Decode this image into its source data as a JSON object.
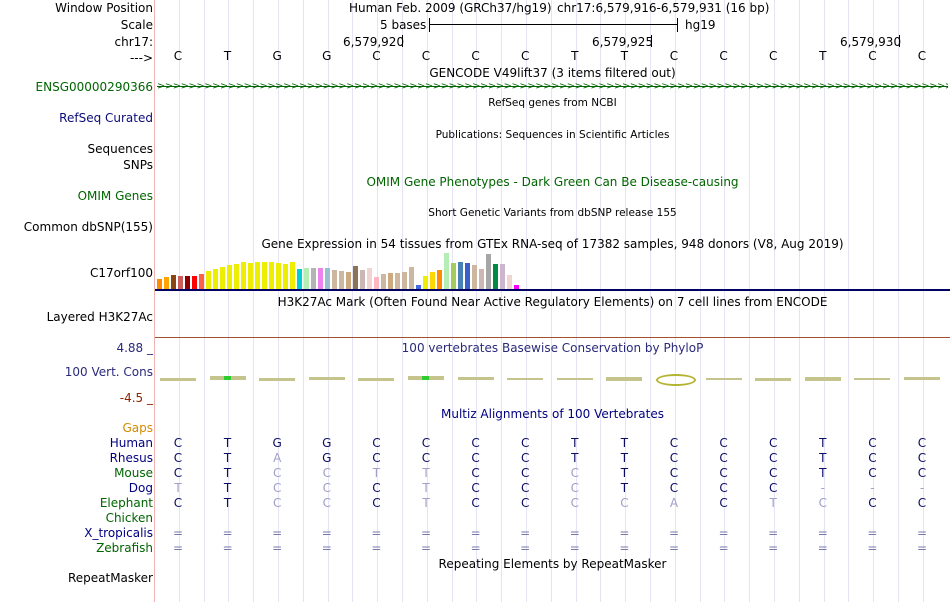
{
  "header": {
    "window_position_label": "Window Position",
    "assembly": "Human Feb. 2009 (GRCh37/hg19)",
    "position": "chr17:6,579,916-6,579,931 (16 bp)",
    "scale_label": "Scale",
    "scale_text": "5 bases",
    "scale_db": "hg19",
    "chrom_label": "chr17:",
    "coords": [
      "6,579,920",
      "6,579,925",
      "6,579,930"
    ],
    "arrow_label": "--->"
  },
  "bases": [
    "C",
    "T",
    "G",
    "G",
    "C",
    "C",
    "C",
    "C",
    "T",
    "T",
    "C",
    "C",
    "C",
    "T",
    "C",
    "C"
  ],
  "tracks": {
    "gencode": {
      "title": "GENCODE V49lift37 (3 items filtered out)",
      "label": "ENSG00000290366",
      "color": "#006400"
    },
    "refseq": {
      "title": "RefSeq genes from NCBI",
      "label": "RefSeq Curated",
      "color": "#0c0c78"
    },
    "publications": {
      "title": "Publications: Sequences in Scientific Articles",
      "label": "Sequences"
    },
    "snps": {
      "label": "SNPs"
    },
    "omim": {
      "title": "OMIM Gene Phenotypes - Dark Green Can Be Disease-causing",
      "label": "OMIM Genes",
      "color": "#006400"
    },
    "dbsnp": {
      "title": "Short Genetic Variants from dbSNP release 155",
      "label": "Common dbSNP(155)"
    },
    "gtex": {
      "title": "Gene Expression in 54 tissues from GTEx RNA-seq of 17382 samples, 948 donors (V8, Aug 2019)",
      "label": "C17orf100",
      "bars": [
        {
          "v": 0.28,
          "c": "#ff8c00"
        },
        {
          "v": 0.32,
          "c": "#ffa500"
        },
        {
          "v": 0.38,
          "c": "#8b4513"
        },
        {
          "v": 0.35,
          "c": "#cd5c5c"
        },
        {
          "v": 0.36,
          "c": "#8b0000"
        },
        {
          "v": 0.36,
          "c": "#ff0000"
        },
        {
          "v": 0.4,
          "c": "#ff6347"
        },
        {
          "v": 0.48,
          "c": "#eeee00"
        },
        {
          "v": 0.55,
          "c": "#eeee00"
        },
        {
          "v": 0.6,
          "c": "#eeee00"
        },
        {
          "v": 0.65,
          "c": "#eeee00"
        },
        {
          "v": 0.68,
          "c": "#eeee00"
        },
        {
          "v": 0.72,
          "c": "#eeee00"
        },
        {
          "v": 0.7,
          "c": "#eeee00"
        },
        {
          "v": 0.72,
          "c": "#eeee00"
        },
        {
          "v": 0.74,
          "c": "#eeee00"
        },
        {
          "v": 0.72,
          "c": "#eeee00"
        },
        {
          "v": 0.7,
          "c": "#eeee00"
        },
        {
          "v": 0.68,
          "c": "#eeee00"
        },
        {
          "v": 0.72,
          "c": "#eeee00"
        },
        {
          "v": 0.55,
          "c": "#00ced1"
        },
        {
          "v": 0.58,
          "c": "#b4eeb4"
        },
        {
          "v": 0.56,
          "c": "#b4b4b4"
        },
        {
          "v": 0.58,
          "c": "#ee82ee"
        },
        {
          "v": 0.56,
          "c": "#9ac0cd"
        },
        {
          "v": 0.52,
          "c": "#cdb79e"
        },
        {
          "v": 0.48,
          "c": "#cdb79e"
        },
        {
          "v": 0.46,
          "c": "#cdaa7d"
        },
        {
          "v": 0.62,
          "c": "#8b7355"
        },
        {
          "v": 0.5,
          "c": "#cdb7b5"
        },
        {
          "v": 0.56,
          "c": "#eed5d2"
        },
        {
          "v": 0.32,
          "c": "#ffb6c1"
        },
        {
          "v": 0.4,
          "c": "#cdb79e"
        },
        {
          "v": 0.42,
          "c": "#cdaa7d"
        },
        {
          "v": 0.42,
          "c": "#cdb79e"
        },
        {
          "v": 0.45,
          "c": "#cdb79e"
        },
        {
          "v": 0.6,
          "c": "#cdb79e"
        },
        {
          "v": 0.1,
          "c": "#4169e1"
        },
        {
          "v": 0.35,
          "c": "#eeee00"
        },
        {
          "v": 0.45,
          "c": "#ffd700"
        },
        {
          "v": 0.5,
          "c": "#ff8c00"
        },
        {
          "v": 0.98,
          "c": "#b4eeb4"
        },
        {
          "v": 0.7,
          "c": "#a2cd5a"
        },
        {
          "v": 0.72,
          "c": "#4682b4"
        },
        {
          "v": 0.7,
          "c": "#3a5fcd"
        },
        {
          "v": 0.66,
          "c": "#cdb79e"
        },
        {
          "v": 0.55,
          "c": "#cdb7b5"
        },
        {
          "v": 0.94,
          "c": "#a6a6a6"
        },
        {
          "v": 0.68,
          "c": "#008b45"
        },
        {
          "v": 0.68,
          "c": "#cdb5cd"
        },
        {
          "v": 0.38,
          "c": "#eed5d2"
        },
        {
          "v": 0.12,
          "c": "#ff00ff"
        }
      ]
    },
    "h3k27ac": {
      "title": "H3K27Ac Mark (Often Found Near Active Regulatory Elements) on 7 cell lines from ENCODE",
      "label": "Layered H3K27Ac"
    },
    "phylop": {
      "title": "100 vertebrates Basewise Conservation by PhyloP",
      "label": "100 Vert. Cons",
      "max": "4.88 _",
      "min": "-4.5 _",
      "values": [
        0.1,
        0.4,
        0.1,
        0.15,
        0.1,
        0.4,
        0.15,
        0,
        0,
        0.3,
        1.0,
        0,
        0.1,
        0.3,
        0,
        0.2
      ],
      "color": "#2a2a7a",
      "min_color": "#8b2500"
    },
    "multiz": {
      "title": "Multiz Alignments of 100 Vertebrates",
      "gaps_label": "Gaps",
      "gaps_color": "#d28c00",
      "species": [
        {
          "name": "Human",
          "color": "#000080",
          "bases": [
            "C",
            "T",
            "G",
            "G",
            "C",
            "C",
            "C",
            "C",
            "T",
            "T",
            "C",
            "C",
            "C",
            "T",
            "C",
            "C"
          ]
        },
        {
          "name": "Rhesus",
          "color": "#000080",
          "bases": [
            "C",
            "T",
            "A",
            "G",
            "C",
            "C",
            "C",
            "C",
            "T",
            "T",
            "C",
            "C",
            "C",
            "T",
            "C",
            "C"
          ]
        },
        {
          "name": "Mouse",
          "color": "#006400",
          "bases": [
            "C",
            "T",
            "C",
            "C",
            "T",
            "T",
            "C",
            "C",
            "C",
            "T",
            "C",
            "C",
            "C",
            "T",
            "C",
            "C"
          ]
        },
        {
          "name": "Dog",
          "color": "#000080",
          "bases": [
            "T",
            "T",
            "C",
            "C",
            "C",
            "T",
            "C",
            "C",
            "C",
            "T",
            "C",
            "C",
            "C",
            "-",
            "-",
            "-"
          ]
        },
        {
          "name": "Elephant",
          "color": "#006400",
          "bases": [
            "C",
            "T",
            "C",
            "C",
            "C",
            "T",
            "C",
            "C",
            "C",
            "C",
            "A",
            "C",
            "T",
            "C",
            "C",
            "C"
          ]
        },
        {
          "name": "Chicken",
          "color": "#006400",
          "bases": []
        },
        {
          "name": "X_tropicalis",
          "color": "#000080",
          "bases": [
            "=",
            "=",
            "=",
            "=",
            "=",
            "=",
            "=",
            "=",
            "=",
            "=",
            "=",
            "=",
            "=",
            "=",
            "=",
            "="
          ]
        },
        {
          "name": "Zebrafish",
          "color": "#006400",
          "bases": [
            "=",
            "=",
            "=",
            "=",
            "=",
            "=",
            "=",
            "=",
            "=",
            "=",
            "=",
            "=",
            "=",
            "=",
            "=",
            "="
          ]
        }
      ]
    },
    "repeatmasker": {
      "title": "Repeating Elements by RepeatMasker",
      "label": "RepeatMasker"
    }
  }
}
